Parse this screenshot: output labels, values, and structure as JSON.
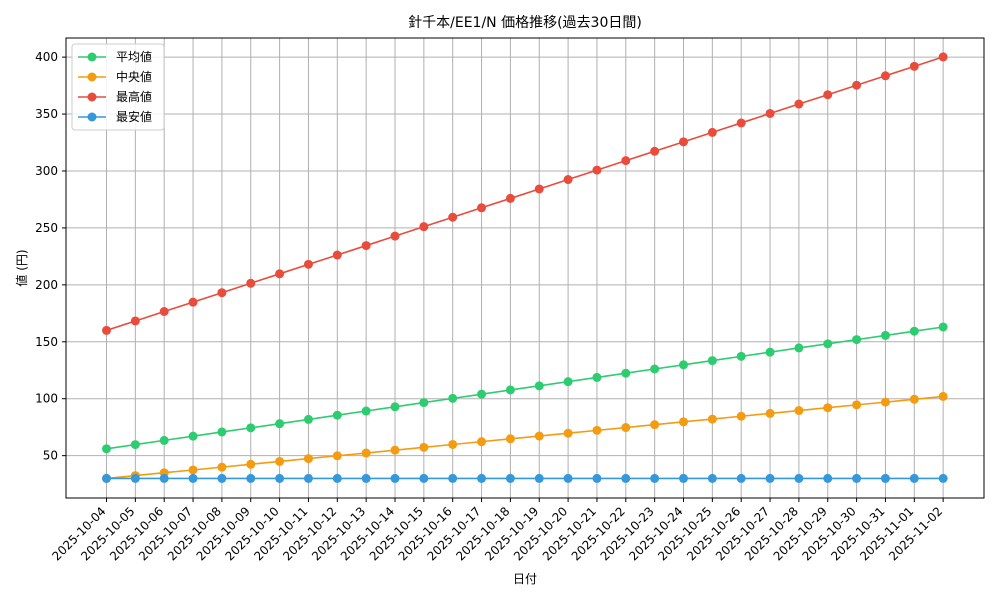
{
  "chart_data": {
    "type": "line",
    "title": "針千本/EE1/N 価格推移(過去30日間)",
    "xlabel": "日付",
    "ylabel": "値 (円)",
    "ylim": [
      12.8,
      416.8
    ],
    "yticks": [
      50,
      100,
      150,
      200,
      250,
      300,
      350,
      400
    ],
    "grid": true,
    "legend_position": "top-left",
    "categories": [
      "2025-10-04",
      "2025-10-05",
      "2025-10-06",
      "2025-10-07",
      "2025-10-08",
      "2025-10-09",
      "2025-10-10",
      "2025-10-11",
      "2025-10-12",
      "2025-10-13",
      "2025-10-14",
      "2025-10-15",
      "2025-10-16",
      "2025-10-17",
      "2025-10-18",
      "2025-10-19",
      "2025-10-20",
      "2025-10-21",
      "2025-10-22",
      "2025-10-23",
      "2025-10-24",
      "2025-10-25",
      "2025-10-26",
      "2025-10-27",
      "2025-10-28",
      "2025-10-29",
      "2025-10-30",
      "2025-10-31",
      "2025-11-01",
      "2025-11-02"
    ],
    "series": [
      {
        "name": "平均値",
        "color": "#2ecc71",
        "values": [
          56,
          59.7,
          63.4,
          67.1,
          70.8,
          74.4,
          78.1,
          81.8,
          85.5,
          89.2,
          92.9,
          96.6,
          100.3,
          104,
          107.7,
          111.3,
          115,
          118.7,
          122.4,
          126.1,
          129.8,
          133.5,
          137.2,
          140.9,
          144.6,
          148.2,
          151.9,
          155.6,
          159.3,
          163
        ]
      },
      {
        "name": "中央値",
        "color": "#f39c12",
        "values": [
          30,
          32.5,
          35,
          37.4,
          39.9,
          42.4,
          44.9,
          47.4,
          49.9,
          52.3,
          54.8,
          57.3,
          59.8,
          62.3,
          64.8,
          67.2,
          69.7,
          72.2,
          74.7,
          77.2,
          79.7,
          82.1,
          84.6,
          87.1,
          89.6,
          92.1,
          94.6,
          97,
          99.5,
          102
        ]
      },
      {
        "name": "最高値",
        "color": "#e74c3c",
        "values": [
          160,
          168.3,
          176.6,
          184.8,
          193.1,
          201.4,
          209.7,
          218,
          226.2,
          234.5,
          242.8,
          251.1,
          259.4,
          267.7,
          275.9,
          284.2,
          292.5,
          300.8,
          309.1,
          317.3,
          325.6,
          333.9,
          342.2,
          350.5,
          358.8,
          367,
          375.3,
          383.6,
          391.9,
          400.2
        ]
      },
      {
        "name": "最安値",
        "color": "#3498db",
        "values": [
          30,
          30,
          30,
          30,
          30,
          30,
          30,
          30,
          30,
          30,
          30,
          30,
          30,
          30,
          30,
          30,
          30,
          30,
          30,
          30,
          30,
          30,
          30,
          30,
          30,
          30,
          30,
          30,
          30,
          30
        ]
      }
    ]
  }
}
